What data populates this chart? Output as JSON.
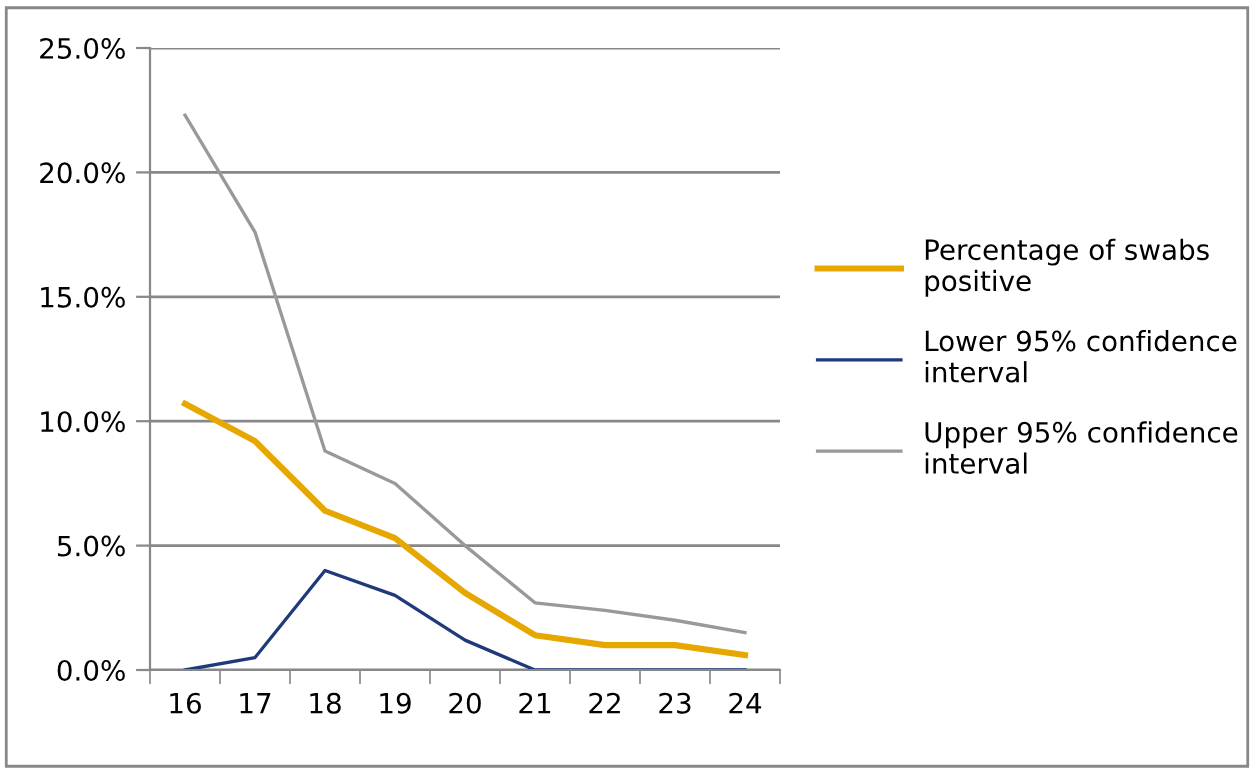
{
  "chart_data": {
    "type": "line",
    "categories": [
      "16",
      "17",
      "18",
      "19",
      "20",
      "21",
      "22",
      "23",
      "24"
    ],
    "series": [
      {
        "name": "Percentage of swabs positive",
        "color": "#e6a800",
        "values": [
          10.7,
          9.2,
          6.4,
          5.3,
          3.1,
          1.4,
          1.0,
          1.0,
          0.6
        ]
      },
      {
        "name": "Lower 95% confidence interval",
        "color": "#1f3a7a",
        "values": [
          0.0,
          0.5,
          4.0,
          3.0,
          1.2,
          0.0,
          0.0,
          0.0,
          0.0
        ]
      },
      {
        "name": "Upper 95% confidence interval",
        "color": "#999999",
        "values": [
          22.3,
          17.6,
          8.8,
          7.5,
          5.0,
          2.7,
          2.4,
          2.0,
          1.5
        ]
      }
    ],
    "ylim": [
      0,
      25
    ],
    "yticks": [
      {
        "value": 0,
        "label": "0.0%"
      },
      {
        "value": 5,
        "label": "5.0%"
      },
      {
        "value": 10,
        "label": "10.0%"
      },
      {
        "value": 15,
        "label": "15.0%"
      },
      {
        "value": 20,
        "label": "20.0%"
      },
      {
        "value": 25,
        "label": "25.0%"
      }
    ],
    "grid": "y",
    "legend": "right",
    "marker": "none",
    "line_style": "solid"
  }
}
